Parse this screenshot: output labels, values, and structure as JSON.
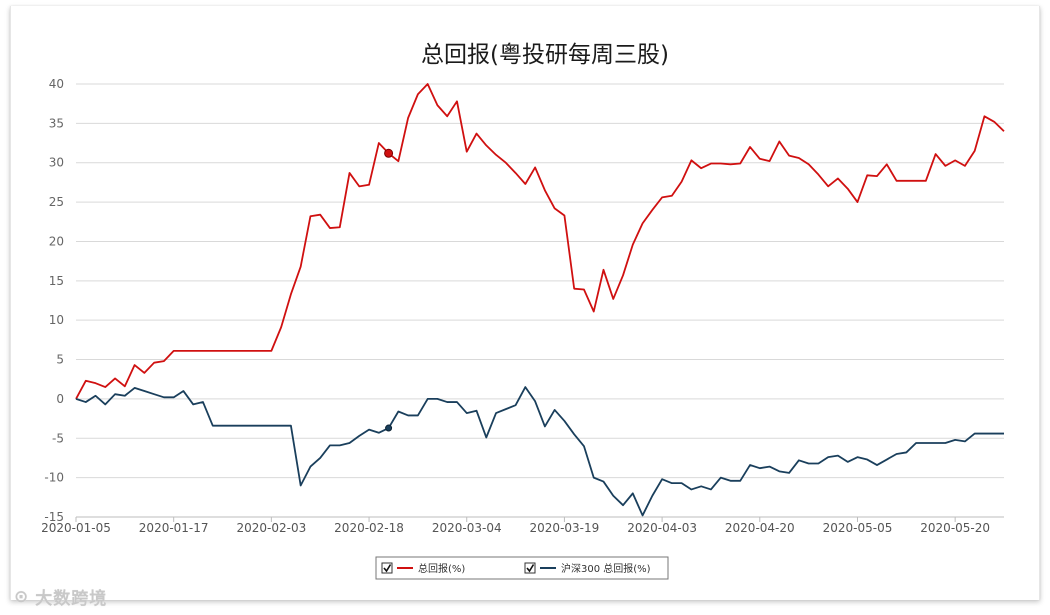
{
  "chart_data": {
    "type": "line",
    "title": "总回报(粤投研每周三股)",
    "xlabel": "",
    "ylabel": "",
    "ylim": [
      -15,
      40
    ],
    "yticks": [
      -15,
      -10,
      -5,
      0,
      5,
      10,
      15,
      20,
      25,
      30,
      35,
      40
    ],
    "x_tick_labels": [
      "2020-01-05",
      "2020-01-17",
      "2020-02-03",
      "2020-02-18",
      "2020-03-04",
      "2020-03-19",
      "2020-04-03",
      "2020-04-20",
      "2020-05-05",
      "2020-05-20"
    ],
    "x_tick_index": [
      0,
      10,
      20,
      30,
      40,
      50,
      60,
      70,
      80,
      90
    ],
    "x_count": 96,
    "grid": "horizontal",
    "legend_position": "bottom-center",
    "series": [
      {
        "name": "总回报(%)",
        "color": "#d01010",
        "highlight_index": 32,
        "values": [
          0.0,
          2.3,
          2.0,
          1.5,
          2.6,
          1.6,
          4.3,
          3.3,
          4.6,
          4.8,
          6.1,
          6.1,
          6.1,
          6.1,
          6.1,
          6.1,
          6.1,
          6.1,
          6.1,
          6.1,
          6.1,
          9.1,
          13.3,
          16.8,
          23.2,
          23.4,
          21.7,
          21.8,
          28.7,
          27.0,
          27.2,
          32.5,
          31.2,
          30.2,
          35.7,
          38.7,
          40.0,
          37.3,
          35.9,
          37.8,
          31.4,
          33.7,
          32.2,
          31.0,
          30.0,
          28.7,
          27.3,
          29.4,
          26.5,
          24.2,
          23.3,
          14.0,
          13.9,
          11.1,
          16.4,
          12.7,
          15.7,
          19.6,
          22.3,
          24.0,
          25.6,
          25.8,
          27.6,
          30.3,
          29.3,
          29.9,
          29.9,
          29.8,
          29.9,
          32.0,
          30.5,
          30.2,
          32.7,
          30.9,
          30.6,
          29.8,
          28.5,
          27.0,
          28.0,
          26.7,
          25.0,
          28.4,
          28.3,
          29.8,
          27.7,
          27.7,
          27.7,
          27.7,
          31.1,
          29.6,
          30.3,
          29.6,
          31.5,
          35.9,
          35.2,
          34.0
        ]
      },
      {
        "name": "沪深300 总回报(%)",
        "color": "#1a3f5c",
        "highlight_index": 32,
        "values": [
          0.0,
          -0.4,
          0.4,
          -0.7,
          0.6,
          0.4,
          1.4,
          1.0,
          0.6,
          0.2,
          0.2,
          1.0,
          -0.7,
          -0.4,
          -3.4,
          -3.4,
          -3.4,
          -3.4,
          -3.4,
          -3.4,
          -3.4,
          -3.4,
          -3.4,
          -11.0,
          -8.6,
          -7.5,
          -5.9,
          -5.9,
          -5.6,
          -4.7,
          -3.9,
          -4.3,
          -3.7,
          -1.6,
          -2.1,
          -2.1,
          0.0,
          0.0,
          -0.4,
          -0.4,
          -1.8,
          -1.5,
          -4.9,
          -1.8,
          -1.3,
          -0.8,
          1.5,
          -0.3,
          -3.5,
          -1.4,
          -2.8,
          -4.5,
          -6.0,
          -10.0,
          -10.5,
          -12.3,
          -13.5,
          -12.0,
          -14.8,
          -12.3,
          -10.2,
          -10.7,
          -10.7,
          -11.5,
          -11.1,
          -11.5,
          -10.0,
          -10.4,
          -10.4,
          -8.4,
          -8.8,
          -8.6,
          -9.2,
          -9.4,
          -7.8,
          -8.2,
          -8.2,
          -7.4,
          -7.2,
          -8.0,
          -7.4,
          -7.7,
          -8.4,
          -7.7,
          -7.0,
          -6.8,
          -5.6,
          -5.6,
          -5.6,
          -5.6,
          -5.2,
          -5.4,
          -4.4,
          -4.4,
          -4.4,
          -4.4
        ]
      }
    ]
  },
  "watermark": {
    "logo_text": "⊙",
    "text": "大数跨境"
  }
}
